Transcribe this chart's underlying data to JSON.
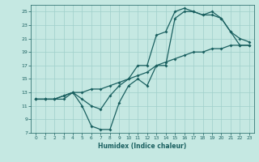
{
  "xlabel": "Humidex (Indice chaleur)",
  "xlim": [
    -0.5,
    23.5
  ],
  "ylim": [
    7,
    26
  ],
  "xticks": [
    0,
    1,
    2,
    3,
    4,
    5,
    6,
    7,
    8,
    9,
    10,
    11,
    12,
    13,
    14,
    15,
    16,
    17,
    18,
    19,
    20,
    21,
    22,
    23
  ],
  "yticks": [
    7,
    9,
    11,
    13,
    15,
    17,
    19,
    21,
    23,
    25
  ],
  "background_color": "#c5e8e2",
  "grid_color": "#9fcfca",
  "line_color": "#1a6060",
  "markersize": 2.0,
  "linewidth": 0.9,
  "line1_x": [
    0,
    1,
    2,
    3,
    4,
    5,
    6,
    7,
    8,
    9,
    10,
    11,
    12,
    13,
    14,
    15,
    16,
    17,
    18,
    19,
    20,
    21,
    22,
    23
  ],
  "line1_y": [
    12,
    12,
    12,
    12.5,
    13,
    13,
    13.5,
    13.5,
    14,
    14.5,
    15,
    15.5,
    16,
    17,
    17.5,
    18,
    18.5,
    19,
    19,
    19.5,
    19.5,
    20,
    20,
    20
  ],
  "line2_x": [
    0,
    1,
    2,
    3,
    4,
    5,
    6,
    7,
    8,
    9,
    10,
    11,
    12,
    13,
    14,
    15,
    16,
    17,
    18,
    19,
    20,
    21,
    22,
    23
  ],
  "line2_y": [
    12,
    12,
    12,
    12.5,
    13,
    12,
    11,
    10.5,
    12.5,
    14,
    15,
    17,
    17,
    21.5,
    22,
    25,
    25.5,
    25,
    24.5,
    24.5,
    24,
    22,
    21,
    20.5
  ],
  "line3_x": [
    0,
    1,
    2,
    3,
    4,
    5,
    6,
    7,
    8,
    9,
    10,
    11,
    12,
    13,
    14,
    15,
    16,
    17,
    18,
    19,
    20,
    21,
    22,
    23
  ],
  "line3_y": [
    12,
    12,
    12,
    12,
    13,
    11,
    8,
    7.5,
    7.5,
    11.5,
    14,
    15,
    14,
    17,
    17,
    24,
    25,
    25,
    24.5,
    25,
    24,
    22,
    20,
    20
  ]
}
